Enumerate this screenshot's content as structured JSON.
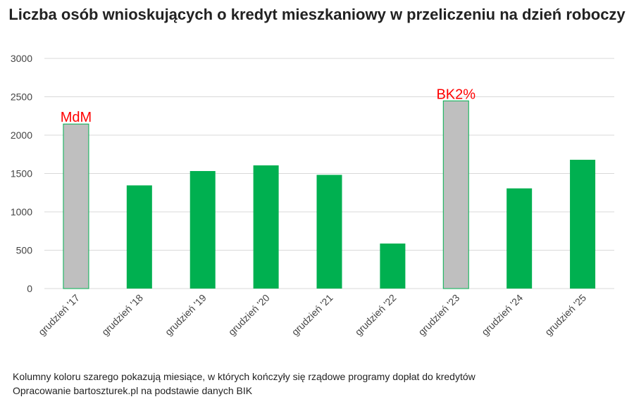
{
  "chart_data": {
    "type": "bar",
    "title": "Liczba osób wnioskujących o kredyt mieszkaniowy w przeliczeniu na dzień roboczy",
    "categories": [
      "grudzień '17",
      "grudzień '18",
      "grudzień '19",
      "grudzień '20",
      "grudzień '21",
      "grudzień '22",
      "grudzień '23",
      "grudzień '24",
      "grudzień '25"
    ],
    "values": [
      2145,
      1345,
      1532,
      1606,
      1482,
      587,
      2447,
      1306,
      1679
    ],
    "highlight": [
      true,
      false,
      false,
      false,
      false,
      false,
      true,
      false,
      false
    ],
    "annotations": [
      "MdM",
      "",
      "",
      "",
      "",
      "",
      "BK2%",
      "",
      ""
    ],
    "ylim": [
      0,
      3000
    ],
    "yticks": [
      0,
      500,
      1000,
      1500,
      2000,
      2500,
      3000
    ],
    "grid": true,
    "xlabel": "",
    "ylabel": "",
    "colors": {
      "bar": "#00B050",
      "highlight": "#BFBFBF",
      "annotation": "#FF0000",
      "grid": "#D9D9D9"
    }
  },
  "footer": {
    "note": "Kolumny koloru szarego pokazują miesiące, w których kończyły się rządowe programy dopłat do kredytów",
    "source": "Opracowanie bartoszturek.pl na podstawie danych BIK"
  }
}
